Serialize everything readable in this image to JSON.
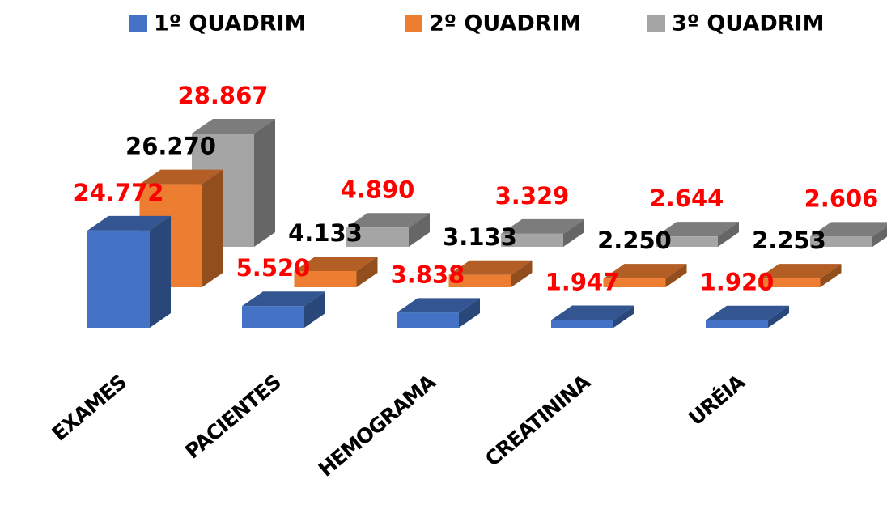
{
  "chart_data": {
    "type": "bar3d",
    "categories": [
      "EXAMES",
      "PACIENTES",
      "HEMOGRAMA",
      "CREATININA",
      "URÉIA"
    ],
    "series": [
      {
        "name": "1º QUADRIM",
        "color": "#4472c4",
        "label_color": "#ff0000",
        "values": [
          24772,
          5520,
          3838,
          1947,
          1920
        ],
        "value_labels": [
          "24.772",
          "5.520",
          "3.838",
          "1.947",
          "1.920"
        ]
      },
      {
        "name": "2º QUADRIM",
        "color": "#ed7d31",
        "label_color": "#000000",
        "values": [
          26270,
          4133,
          3133,
          2250,
          2253
        ],
        "value_labels": [
          "26.270",
          "4.133",
          "3.133",
          "2.250",
          "2.253"
        ]
      },
      {
        "name": "3º QUADRIM",
        "color": "#a5a5a5",
        "label_color": "#ff0000",
        "values": [
          28867,
          4890,
          3329,
          2644,
          2606
        ],
        "value_labels": [
          "28.867",
          "4.890",
          "3.329",
          "2.644",
          "2.606"
        ]
      }
    ],
    "legend": "top"
  }
}
